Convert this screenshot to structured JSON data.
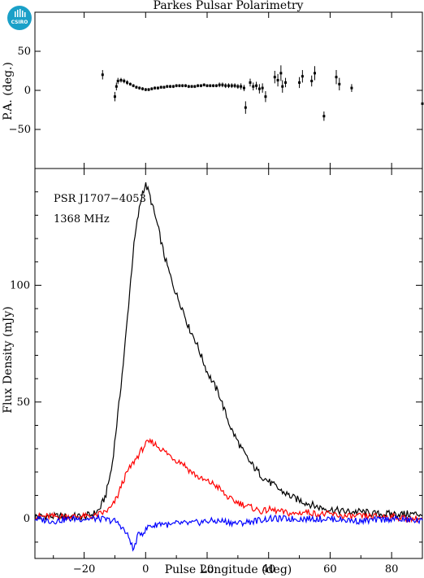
{
  "title": "Parkes Pulsar Polarimetry",
  "logo": {
    "text": "CSIRO",
    "color": "#1aa0c8"
  },
  "colors": {
    "total": "#000000",
    "linear": "#ff0000",
    "circular": "#0000ff"
  },
  "chart_data": [
    {
      "type": "scatter",
      "panel": "position-angle",
      "ylabel": "P.A. (deg.)",
      "xlim": [
        -36,
        90
      ],
      "ylim": [
        -100,
        100
      ],
      "yticks": [
        -50,
        0,
        50
      ],
      "ytick_labels": [
        "−50",
        "0",
        "50"
      ],
      "x": [
        -14,
        -10,
        -9.5,
        -9,
        -8,
        -7,
        -6,
        -5,
        -4,
        -3,
        -2,
        -1,
        0,
        1,
        2,
        3,
        4,
        5,
        6,
        7,
        8,
        9,
        10,
        11,
        12,
        13,
        14,
        15,
        16,
        17,
        18,
        19,
        20,
        21,
        22,
        23,
        24,
        25,
        26,
        27,
        28,
        29,
        30,
        31,
        32,
        32.5,
        34,
        35,
        36,
        37,
        38,
        39,
        42,
        43,
        44,
        44.5,
        45.5,
        50,
        51,
        54,
        55,
        58,
        62,
        63,
        67,
        90
      ],
      "y": [
        20,
        -8,
        5,
        12,
        13,
        12,
        10,
        8,
        6,
        4,
        3,
        2,
        1,
        1,
        2,
        3,
        3,
        4,
        4,
        5,
        5,
        5,
        6,
        6,
        6,
        6,
        5,
        5,
        5,
        6,
        6,
        7,
        6,
        6,
        6,
        6,
        7,
        7,
        6,
        6,
        6,
        6,
        5,
        5,
        3,
        -22,
        10,
        5,
        6,
        2,
        3,
        -8,
        17,
        13,
        22,
        5,
        10,
        10,
        18,
        12,
        22,
        -33,
        17,
        8,
        3,
        -17
      ],
      "yerr": [
        6,
        6,
        5,
        4,
        3,
        3,
        3,
        2,
        2,
        2,
        2,
        2,
        2,
        2,
        2,
        2,
        2,
        2,
        2,
        2,
        2,
        2,
        2,
        2,
        2,
        2,
        2,
        2,
        2,
        2,
        2,
        2,
        2,
        2,
        2,
        2,
        3,
        3,
        3,
        3,
        3,
        3,
        3,
        4,
        4,
        8,
        5,
        5,
        5,
        6,
        6,
        7,
        8,
        8,
        10,
        8,
        6,
        7,
        8,
        7,
        9,
        6,
        9,
        8,
        5,
        6
      ]
    },
    {
      "type": "line",
      "panel": "flux-profile",
      "xlabel": "Pulse Longitude (deg)",
      "ylabel": "Flux Density (mJy)",
      "xlim": [
        -36,
        90
      ],
      "ylim": [
        -17,
        150
      ],
      "xticks": [
        -20,
        0,
        20,
        40,
        60,
        80
      ],
      "xtick_labels": [
        "−20",
        "0",
        "20",
        "40",
        "60",
        "80"
      ],
      "yticks": [
        0,
        50,
        100
      ],
      "ytick_labels": [
        "0",
        "50",
        "100"
      ],
      "annotations": [
        "PSR J1707−4053",
        "1368 MHz"
      ],
      "series": [
        {
          "role": "total",
          "x": [
            -36,
            -30,
            -24,
            -20,
            -17,
            -15,
            -13,
            -11,
            -9,
            -7,
            -6,
            -5,
            -4,
            -3,
            -2,
            -1,
            0,
            1,
            2,
            3,
            4,
            5,
            6,
            8,
            10,
            12,
            14,
            16,
            18,
            20,
            22,
            24,
            26,
            28,
            30,
            32,
            34,
            36,
            38,
            40,
            44,
            48,
            52,
            56,
            60,
            65,
            70,
            75,
            80,
            85,
            90
          ],
          "y": [
            1,
            1,
            1,
            1,
            2,
            4,
            10,
            22,
            45,
            70,
            85,
            100,
            115,
            125,
            133,
            140,
            143,
            140,
            135,
            130,
            125,
            119,
            113,
            104,
            96,
            90,
            82,
            77,
            70,
            63,
            58,
            53,
            45,
            38,
            33,
            28,
            24,
            21,
            18,
            16,
            12,
            9,
            7,
            5,
            4,
            3,
            3,
            2,
            2,
            2,
            2
          ]
        },
        {
          "role": "linear",
          "x": [
            -36,
            -30,
            -24,
            -20,
            -17,
            -15,
            -13,
            -11,
            -9,
            -8,
            -6,
            -4,
            -2,
            0,
            2,
            4,
            6,
            8,
            10,
            12,
            14,
            16,
            18,
            20,
            22,
            24,
            26,
            28,
            30,
            32,
            34,
            36,
            38,
            40,
            44,
            48,
            52,
            56,
            60,
            65,
            70,
            75,
            80,
            85,
            90
          ],
          "y": [
            1,
            1,
            1,
            1,
            1,
            2,
            3,
            5,
            10,
            14,
            20,
            24,
            28,
            32,
            33,
            31,
            29,
            27,
            25,
            24,
            21,
            19,
            17,
            16,
            15,
            13,
            10,
            8,
            7,
            6,
            5,
            4,
            3,
            4,
            3,
            2,
            3,
            2,
            2,
            1,
            1,
            1,
            1,
            0,
            0
          ]
        },
        {
          "role": "circular",
          "x": [
            -36,
            -30,
            -24,
            -20,
            -15,
            -10,
            -8,
            -6,
            -5,
            -4,
            -3,
            -2,
            -1,
            0,
            1,
            2,
            3,
            4,
            6,
            8,
            10,
            15,
            20,
            25,
            30,
            35,
            40,
            50,
            60,
            70,
            80,
            90
          ],
          "y": [
            0,
            -1,
            0,
            0,
            0,
            -1,
            -3,
            -7,
            -9,
            -14,
            -9,
            -6,
            -6,
            -5,
            -3,
            -3,
            -3,
            -2,
            -2,
            -3,
            -2,
            -2,
            -1,
            -1,
            -2,
            -1,
            0,
            0,
            0,
            -1,
            0,
            -1
          ]
        }
      ]
    }
  ]
}
